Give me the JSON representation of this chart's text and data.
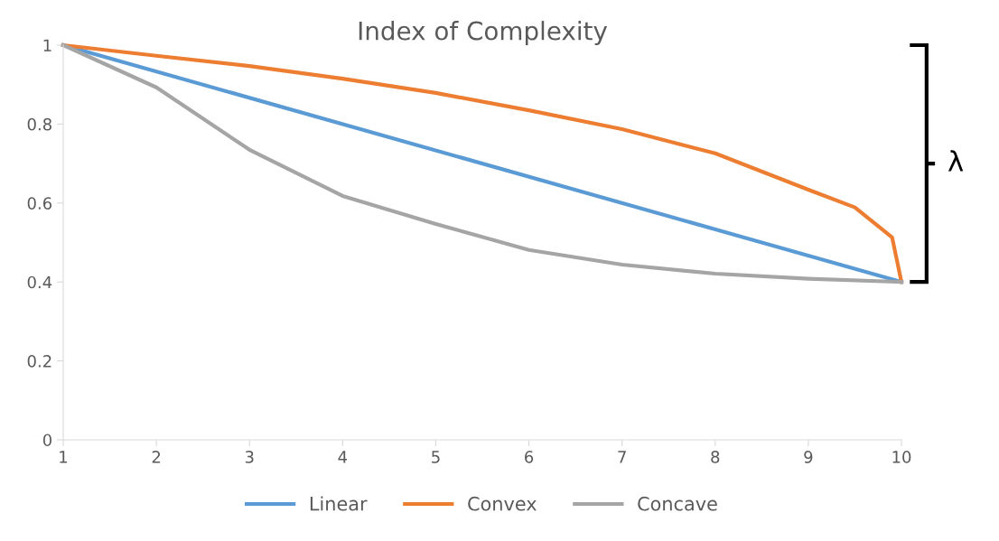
{
  "chart_data": {
    "type": "line",
    "title": "Index of Complexity",
    "legend": "bottom",
    "grid": false,
    "marker": "none",
    "line_style": "solid",
    "xlim": [
      1,
      10
    ],
    "xticks": [
      1,
      2,
      3,
      4,
      5,
      6,
      7,
      8,
      9,
      10
    ],
    "ylim": [
      0,
      1
    ],
    "yticks": [
      0,
      0.2,
      0.4,
      0.6,
      0.8,
      1
    ],
    "annotations": [
      "λ"
    ],
    "series": [
      {
        "name": "Linear",
        "color": "#5b9bd5",
        "x": [
          1,
          10
        ],
        "values": [
          1,
          0.4
        ]
      },
      {
        "name": "Convex",
        "color": "#ed7d31",
        "x": [
          1,
          2,
          3,
          4,
          5,
          6,
          7,
          8,
          9,
          9.5,
          9.9,
          10
        ],
        "values": [
          1,
          0.973,
          0.947,
          0.915,
          0.879,
          0.835,
          0.787,
          0.726,
          0.634,
          0.589,
          0.513,
          0.4
        ]
      },
      {
        "name": "Concave",
        "color": "#a5a5a5",
        "x": [
          1,
          2,
          3,
          4,
          5,
          6,
          7,
          8,
          9,
          10
        ],
        "values": [
          1,
          0.893,
          0.735,
          0.618,
          0.547,
          0.481,
          0.444,
          0.421,
          0.408,
          0.4
        ]
      }
    ]
  }
}
